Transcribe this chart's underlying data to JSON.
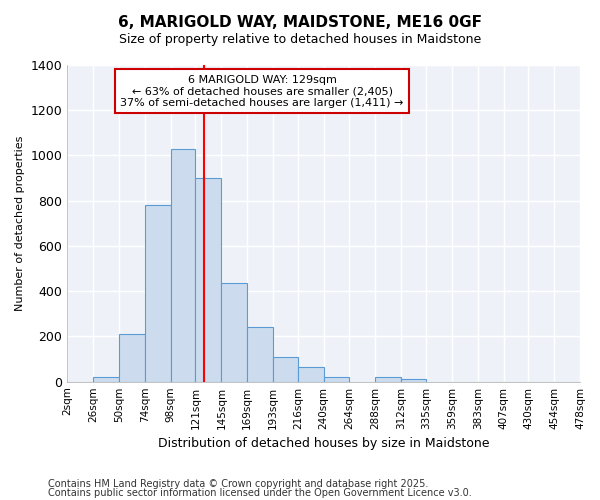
{
  "title_line1": "6, MARIGOLD WAY, MAIDSTONE, ME16 0GF",
  "title_line2": "Size of property relative to detached houses in Maidstone",
  "xlabel": "Distribution of detached houses by size in Maidstone",
  "ylabel": "Number of detached properties",
  "footnote1": "Contains HM Land Registry data © Crown copyright and database right 2025.",
  "footnote2": "Contains public sector information licensed under the Open Government Licence v3.0.",
  "annotation_title": "6 MARIGOLD WAY: 129sqm",
  "annotation_line2": "← 63% of detached houses are smaller (2,405)",
  "annotation_line3": "37% of semi-detached houses are larger (1,411) →",
  "property_size": 129,
  "bar_left_edges": [
    2,
    26,
    50,
    74,
    98,
    121,
    145,
    169,
    193,
    216,
    240,
    264,
    288,
    312,
    335,
    359,
    383,
    407,
    430,
    454
  ],
  "bar_widths": [
    24,
    24,
    24,
    24,
    23,
    24,
    24,
    24,
    23,
    24,
    24,
    24,
    24,
    23,
    24,
    24,
    24,
    23,
    24,
    24
  ],
  "bar_heights": [
    0,
    20,
    210,
    780,
    1030,
    900,
    435,
    240,
    110,
    65,
    20,
    0,
    20,
    10,
    0,
    0,
    0,
    0,
    0,
    0
  ],
  "tick_labels": [
    "2sqm",
    "26sqm",
    "50sqm",
    "74sqm",
    "98sqm",
    "121sqm",
    "145sqm",
    "169sqm",
    "193sqm",
    "216sqm",
    "240sqm",
    "264sqm",
    "288sqm",
    "312sqm",
    "335sqm",
    "359sqm",
    "383sqm",
    "407sqm",
    "430sqm",
    "454sqm",
    "478sqm"
  ],
  "ylim": [
    0,
    1400
  ],
  "bar_facecolor": "#ccdcee",
  "bar_edgecolor": "#5b9bd5",
  "vline_color": "#ff0000",
  "fig_background_color": "#ffffff",
  "axes_background_color": "#eef2f8",
  "grid_color": "#ffffff",
  "annotation_box_edgecolor": "#cc0000",
  "annotation_box_facecolor": "#ffffff",
  "title1_fontsize": 11,
  "title2_fontsize": 9,
  "ylabel_fontsize": 8,
  "xlabel_fontsize": 9,
  "tick_fontsize": 7.5,
  "annot_fontsize": 8,
  "footnote_fontsize": 7
}
